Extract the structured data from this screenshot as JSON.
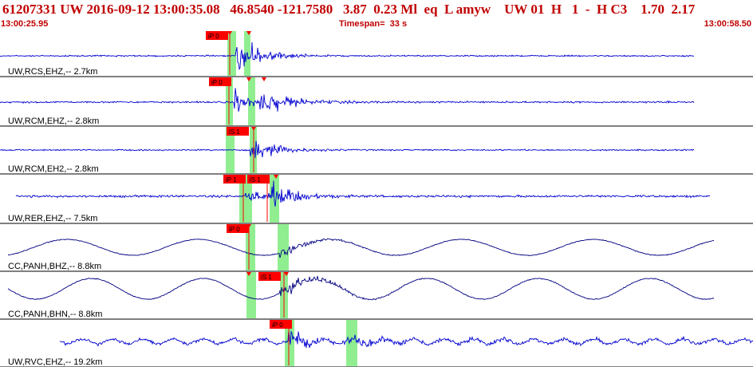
{
  "header": {
    "title": "61207331 UW 2016-09-12 13:00:35.08   46.8540 -121.7580   3.87  0.23 Ml  eq  L amyw    UW 01  H   1  -  H C3    1.70  2.17",
    "start_time": "13:00:25.95",
    "timespan": "Timespan=  33 s",
    "end_time": "13:00:58.50"
  },
  "colors": {
    "header_text": "#c00000",
    "trace_vertical": "#0000d0",
    "trace_horizontal": "#000080",
    "pick": "#ff0000",
    "window": "#90ee90"
  },
  "channels": [
    {
      "label": "UW,RCS,EHZ,-- 2.7km",
      "picks": [
        "iP 0"
      ]
    },
    {
      "label": "UW,RCM,EHZ,-- 2.8km",
      "picks": [
        "iP 0"
      ]
    },
    {
      "label": "UW,RCM,EH2,-- 2.8km",
      "picks": [
        "iS 1"
      ]
    },
    {
      "label": "UW,RER,EHZ,-- 7.5km",
      "picks": [
        "iP 1",
        "iS 1"
      ]
    },
    {
      "label": "CC,PANH,BHZ,-- 8.8km",
      "picks": [
        "iP 0"
      ]
    },
    {
      "label": "CC,PANH,BHN,-- 8.8km",
      "picks": [
        "iS 1"
      ]
    },
    {
      "label": "UW,RVC,EHZ,-- 19.2km",
      "picks": [
        "iP 0"
      ]
    }
  ]
}
